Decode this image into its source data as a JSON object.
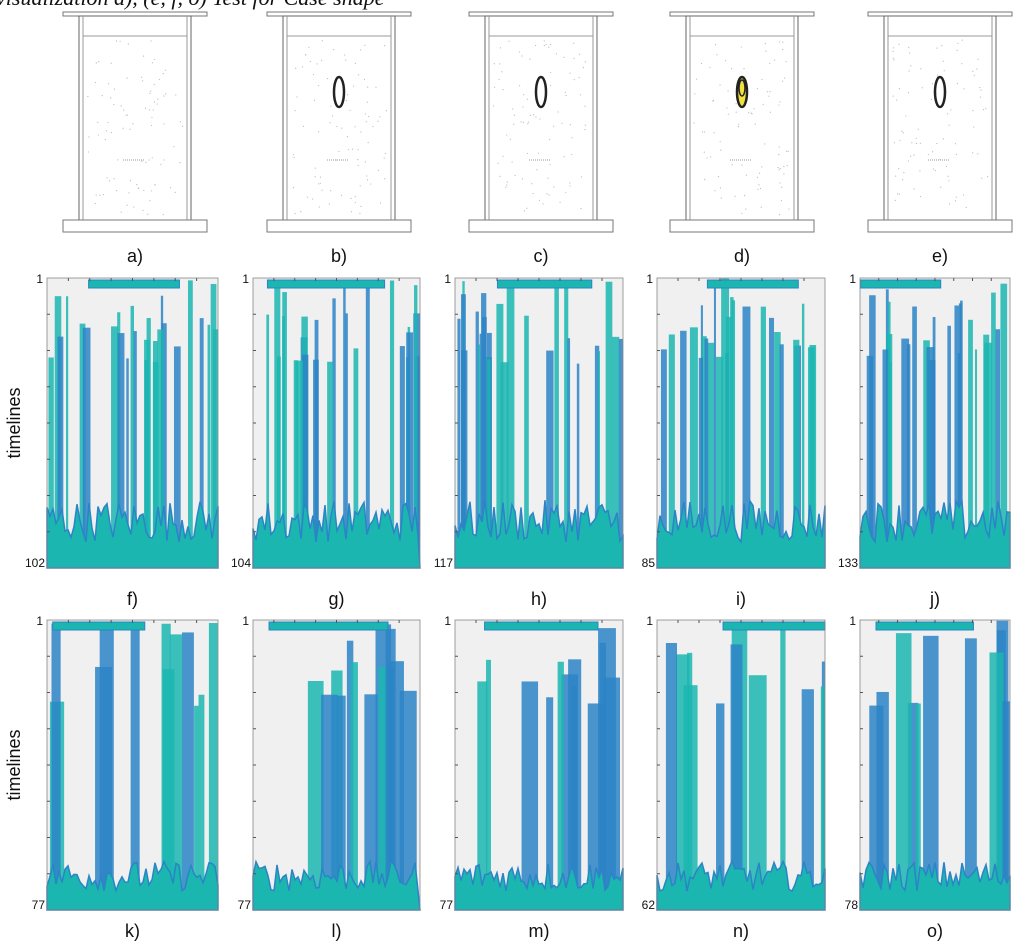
{
  "figure": {
    "caption": "visualization a), (e, f, o) Test for Case shape",
    "rows": [
      {
        "panels": [
          {
            "label": "a)"
          },
          {
            "label": "b)"
          },
          {
            "label": "c)"
          },
          {
            "label": "d)"
          },
          {
            "label": "e)"
          }
        ]
      },
      {
        "ylabel": "timelines",
        "panels": [
          {
            "label": "f)",
            "top": "1",
            "bottom": "102"
          },
          {
            "label": "g)",
            "top": "1",
            "bottom": "104"
          },
          {
            "label": "h)",
            "top": "1",
            "bottom": "117"
          },
          {
            "label": "i)",
            "top": "1",
            "bottom": "85"
          },
          {
            "label": "j)",
            "top": "1",
            "bottom": "133"
          }
        ]
      },
      {
        "ylabel": "timelines",
        "panels": [
          {
            "label": "k)",
            "top": "1",
            "bottom": "77"
          },
          {
            "label": "l)",
            "top": "1",
            "bottom": "77"
          },
          {
            "label": "m)",
            "top": "1",
            "bottom": "77"
          },
          {
            "label": "n)",
            "top": "1",
            "bottom": "62"
          },
          {
            "label": "o)",
            "top": "1",
            "bottom": "78"
          }
        ]
      }
    ]
  }
}
